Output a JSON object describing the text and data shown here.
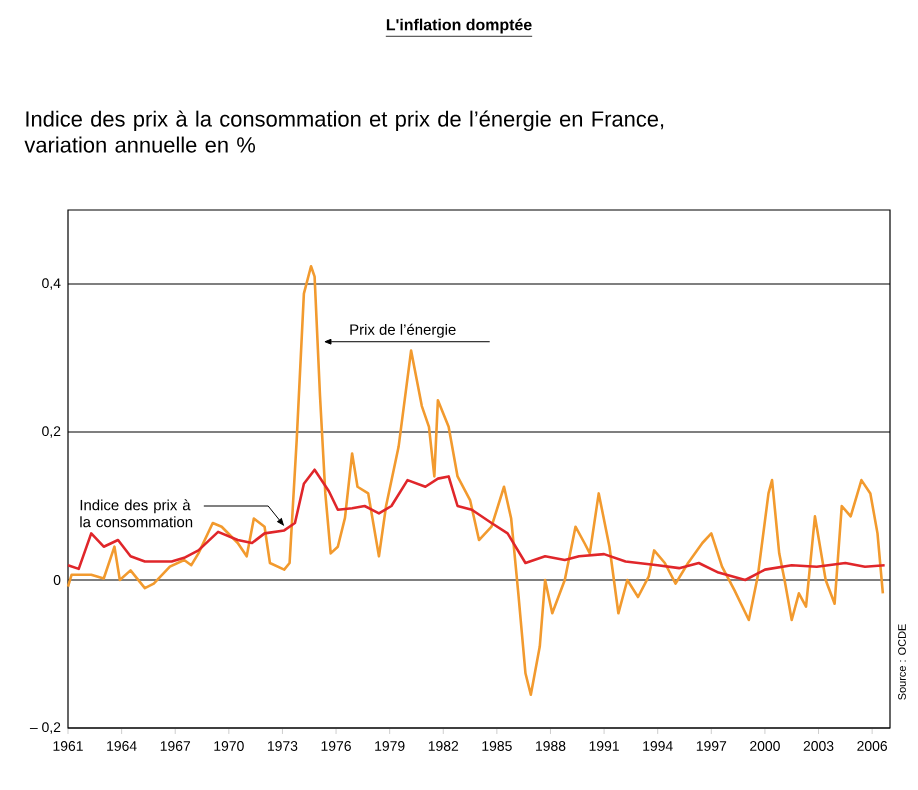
{
  "chart_data": {
    "type": "line",
    "title": "L'inflation domptée",
    "subtitle": "Indice des prix à la consommation et prix de l’énergie en France, variation annuelle en %",
    "annotations": [
      "Source : OCDE"
    ],
    "xlim": [
      1961,
      2007
    ],
    "ylim": [
      -0.2,
      0.5
    ],
    "xticks": [
      1961,
      1964,
      1967,
      1970,
      1973,
      1976,
      1979,
      1982,
      1985,
      1988,
      1991,
      1994,
      1997,
      2000,
      2003,
      2006
    ],
    "yticks": [
      {
        "value": -0.2,
        "label": "– 0,2"
      },
      0,
      {
        "value": 0.2,
        "label": "0,2"
      },
      {
        "value": 0.4,
        "label": "0,4"
      }
    ],
    "grid": "y",
    "series": [
      {
        "name": "Prix de l’énergie",
        "color": "#f29a2e",
        "x": [
          1961,
          1961.2,
          1962.3,
          1963.0,
          1963.6,
          1963.9,
          1964.5,
          1965.3,
          1965.8,
          1966.7,
          1967.5,
          1967.9,
          1968.3,
          1969.1,
          1969.6,
          1970.5,
          1971.0,
          1971.4,
          1972.0,
          1972.3,
          1973.1,
          1973.4,
          1973.8,
          1974.2,
          1974.6,
          1974.8,
          1975.1,
          1975.4,
          1975.7,
          1976.1,
          1976.5,
          1976.9,
          1977.2,
          1977.8,
          1978.4,
          1978.8,
          1979.5,
          1980.2,
          1980.8,
          1981.2,
          1981.5,
          1981.7,
          1982.3,
          1982.8,
          1983.5,
          1984.0,
          1984.7,
          1985.4,
          1985.8,
          1986.2,
          1986.6,
          1986.9,
          1987.4,
          1987.7,
          1988.1,
          1988.8,
          1989.4,
          1989.9,
          1990.2,
          1990.7,
          1991.3,
          1991.8,
          1992.3,
          1992.9,
          1993.5,
          1993.8,
          1994.4,
          1995.0,
          1995.7,
          1996.5,
          1997.0,
          1997.6,
          1998.3,
          1999.1,
          1999.6,
          2000.2,
          2000.4,
          2000.8,
          2001.1,
          2001.5,
          2001.9,
          2002.3,
          2002.8,
          2003.4,
          2003.9,
          2004.3,
          2004.8,
          2005.4,
          2005.9,
          2006.3,
          2006.6
        ],
        "values": [
          -0.009,
          0.007,
          0.007,
          0.002,
          0.045,
          0.0,
          0.013,
          -0.011,
          -0.005,
          0.018,
          0.027,
          0.02,
          0.036,
          0.077,
          0.072,
          0.05,
          0.032,
          0.083,
          0.072,
          0.023,
          0.014,
          0.023,
          0.19,
          0.387,
          0.424,
          0.41,
          0.25,
          0.117,
          0.036,
          0.045,
          0.084,
          0.171,
          0.126,
          0.117,
          0.032,
          0.1,
          0.18,
          0.31,
          0.235,
          0.207,
          0.14,
          0.243,
          0.207,
          0.14,
          0.108,
          0.054,
          0.072,
          0.126,
          0.083,
          -0.018,
          -0.126,
          -0.155,
          -0.09,
          0.0,
          -0.045,
          0.0,
          0.072,
          0.05,
          0.036,
          0.117,
          0.045,
          -0.045,
          0.0,
          -0.023,
          0.005,
          0.04,
          0.023,
          -0.005,
          0.023,
          0.05,
          0.063,
          0.018,
          -0.014,
          -0.054,
          0.005,
          0.117,
          0.135,
          0.036,
          0.0,
          -0.054,
          -0.018,
          -0.036,
          0.086,
          0.0,
          -0.032,
          0.1,
          0.086,
          0.135,
          0.117,
          0.063,
          -0.018
        ]
      },
      {
        "name": "Indice des prix à la consommation",
        "color": "#e0262a",
        "x": [
          1961,
          1961.6,
          1962.3,
          1963.0,
          1963.8,
          1964.5,
          1965.3,
          1966.8,
          1967.5,
          1968.3,
          1969.4,
          1970.5,
          1971.3,
          1972.0,
          1973.1,
          1973.7,
          1974.2,
          1974.8,
          1975.6,
          1976.1,
          1976.9,
          1977.6,
          1978.4,
          1979.1,
          1980.0,
          1981.0,
          1981.7,
          1982.3,
          1982.8,
          1983.6,
          1984.7,
          1985.6,
          1986.6,
          1987.7,
          1988.8,
          1989.6,
          1991.0,
          1992.2,
          1994.0,
          1995.2,
          1996.3,
          1997.4,
          1998.9,
          2000.0,
          2001.5,
          2002.9,
          2004.5,
          2005.6,
          2006.7
        ],
        "values": [
          0.02,
          0.015,
          0.063,
          0.045,
          0.054,
          0.032,
          0.025,
          0.025,
          0.03,
          0.04,
          0.065,
          0.054,
          0.05,
          0.063,
          0.067,
          0.077,
          0.13,
          0.149,
          0.12,
          0.095,
          0.097,
          0.1,
          0.09,
          0.1,
          0.135,
          0.126,
          0.137,
          0.14,
          0.1,
          0.095,
          0.077,
          0.063,
          0.023,
          0.032,
          0.027,
          0.032,
          0.035,
          0.025,
          0.02,
          0.016,
          0.023,
          0.01,
          0.0,
          0.014,
          0.02,
          0.018,
          0.023,
          0.018,
          0.02
        ]
      }
    ]
  }
}
